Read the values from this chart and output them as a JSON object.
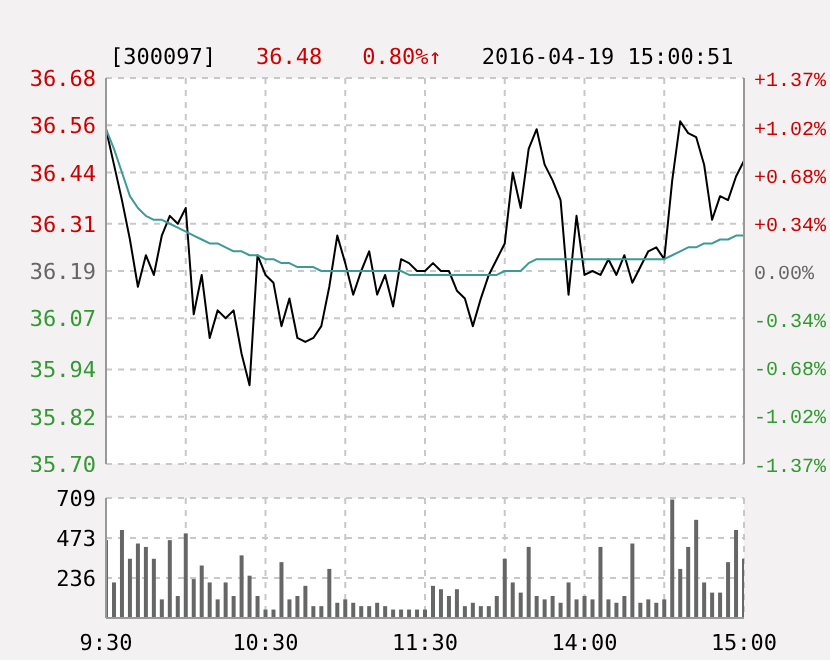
{
  "chart_data": [
    {
      "type": "line",
      "title": "[300097]",
      "annotations": [
        "36.48",
        "0.80%↑",
        "2016-04-19 15:00:51"
      ],
      "categories": [
        null,
        null,
        null,
        null,
        null,
        null,
        null,
        null,
        null,
        null,
        null,
        null,
        null,
        null,
        null,
        null,
        null,
        null,
        null,
        null,
        null,
        null,
        null,
        null,
        null,
        null,
        null,
        null,
        null,
        null,
        null,
        null,
        null,
        null,
        null,
        null,
        null,
        null,
        null,
        null,
        null,
        null,
        null,
        null,
        null,
        null,
        null,
        null,
        null,
        null,
        null,
        null,
        null,
        null,
        null,
        null,
        null,
        null,
        null,
        null,
        null,
        null,
        null,
        null,
        null,
        null,
        null,
        null,
        null,
        null,
        null,
        null,
        null,
        null,
        null,
        null,
        null,
        null,
        null,
        null,
        null
      ],
      "ylim": [
        35.7,
        36.68
      ],
      "yticks": [
        {
          "value": 35.7,
          "label": "35.70"
        },
        35.82,
        35.94,
        36.07,
        36.19,
        36.31,
        36.44,
        36.56,
        36.68
      ],
      "y2lim": [
        -1.37,
        1.37
      ],
      "y2ticks": [
        {
          "value": -1.37,
          "label": "-1.37%"
        },
        {
          "value": -1.02,
          "label": "-1.02%"
        },
        {
          "value": -0.68,
          "label": "-0.68%"
        },
        {
          "value": -0.34,
          "label": "-0.34%"
        },
        {
          "value": 0,
          "label": "0.00%"
        },
        {
          "value": 0.34,
          "label": "+0.34%"
        },
        {
          "value": 0.68,
          "label": "+0.68%"
        },
        {
          "value": 1.02,
          "label": "+1.02%"
        },
        {
          "value": 1.37,
          "label": "+1.37%"
        }
      ],
      "grid": true,
      "tick_labels": "y",
      "series": [
        {
          "color": "#000000",
          "values": [
            36.55,
            36.46,
            36.37,
            36.27,
            36.15,
            36.23,
            36.18,
            36.28,
            36.33,
            36.31,
            36.35,
            36.08,
            36.18,
            36.02,
            36.09,
            36.07,
            36.09,
            35.98,
            35.9,
            36.23,
            36.18,
            36.16,
            36.05,
            36.12,
            36.02,
            36.01,
            36.02,
            36.05,
            36.15,
            36.28,
            36.21,
            36.13,
            36.19,
            36.24,
            36.13,
            36.18,
            36.1,
            36.22,
            36.21,
            36.19,
            36.19,
            36.21,
            36.19,
            36.19,
            36.14,
            36.12,
            36.05,
            36.12,
            36.18,
            36.22,
            36.26,
            36.44,
            36.35,
            36.5,
            36.55,
            36.46,
            36.42,
            36.37,
            36.13,
            36.33,
            36.18,
            36.19,
            36.18,
            36.22,
            36.18,
            36.23,
            36.16,
            36.2,
            36.24,
            36.25,
            36.22,
            36.42,
            36.57,
            36.54,
            36.53,
            36.46,
            36.32,
            36.38,
            36.37,
            36.43,
            36.47
          ]
        },
        {
          "color": "#3d9a96",
          "values": [
            36.55,
            36.5,
            36.44,
            36.38,
            36.35,
            36.33,
            36.32,
            36.32,
            36.31,
            36.3,
            36.29,
            36.28,
            36.27,
            36.26,
            36.26,
            36.25,
            36.24,
            36.24,
            36.23,
            36.23,
            36.22,
            36.22,
            36.21,
            36.21,
            36.2,
            36.2,
            36.2,
            36.19,
            36.19,
            36.19,
            36.19,
            36.19,
            36.19,
            36.19,
            36.19,
            36.19,
            36.19,
            36.19,
            36.18,
            36.18,
            36.18,
            36.18,
            36.18,
            36.18,
            36.18,
            36.18,
            36.18,
            36.18,
            36.18,
            36.18,
            36.19,
            36.19,
            36.19,
            36.21,
            36.22,
            36.22,
            36.22,
            36.22,
            36.22,
            36.22,
            36.22,
            36.22,
            36.22,
            36.22,
            36.22,
            36.22,
            36.22,
            36.22,
            36.22,
            36.22,
            36.22,
            36.23,
            36.24,
            36.25,
            36.25,
            36.26,
            36.26,
            36.27,
            36.27,
            36.28,
            36.28
          ]
        }
      ]
    },
    {
      "type": "bar",
      "categories": [
        "9:30",
        null,
        null,
        null,
        null,
        null,
        null,
        null,
        null,
        null,
        null,
        null,
        null,
        null,
        null,
        null,
        null,
        null,
        null,
        null,
        "10:30",
        null,
        null,
        null,
        null,
        null,
        null,
        null,
        null,
        null,
        null,
        null,
        null,
        null,
        null,
        null,
        null,
        null,
        null,
        null,
        "11:30",
        null,
        null,
        null,
        null,
        null,
        null,
        null,
        null,
        null,
        null,
        null,
        null,
        null,
        null,
        null,
        null,
        null,
        null,
        null,
        "14:00",
        null,
        null,
        null,
        null,
        null,
        null,
        null,
        null,
        null,
        null,
        null,
        null,
        null,
        null,
        null,
        null,
        null,
        null,
        null,
        "15:00"
      ],
      "ylim": [
        0,
        709
      ],
      "yticks": [
        236,
        473,
        709
      ],
      "grid": true,
      "color": "#666666",
      "values": [
        460,
        210,
        520,
        350,
        440,
        420,
        350,
        110,
        460,
        130,
        500,
        230,
        310,
        210,
        110,
        210,
        130,
        370,
        250,
        130,
        50,
        50,
        330,
        110,
        130,
        190,
        70,
        70,
        290,
        90,
        110,
        90,
        70,
        70,
        90,
        70,
        50,
        50,
        50,
        50,
        50,
        190,
        170,
        130,
        170,
        70,
        90,
        70,
        70,
        130,
        350,
        210,
        150,
        420,
        130,
        110,
        130,
        90,
        210,
        110,
        130,
        110,
        420,
        110,
        90,
        130,
        440,
        90,
        110,
        90,
        110,
        700,
        290,
        420,
        580,
        210,
        150,
        150,
        330,
        520,
        350
      ]
    }
  ]
}
